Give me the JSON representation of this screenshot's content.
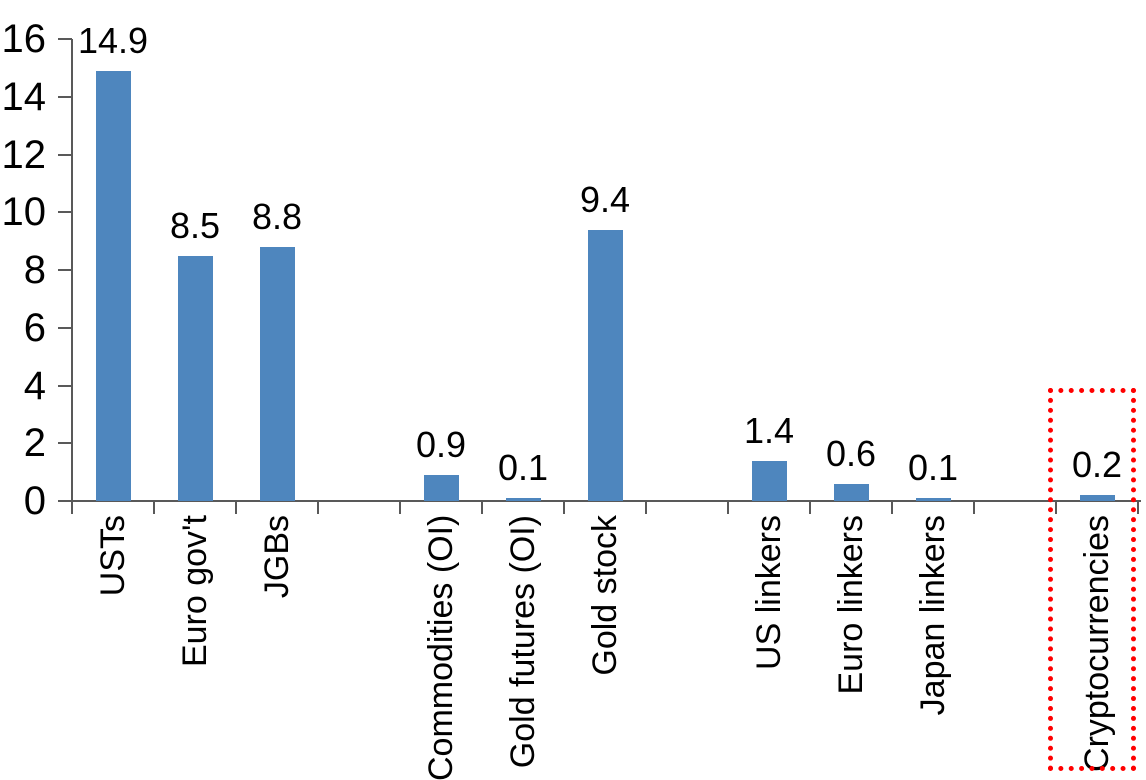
{
  "chart_data": {
    "type": "bar",
    "title": "",
    "xlabel": "",
    "ylabel": "",
    "categories": [
      "USTs",
      "Euro gov't",
      "JGBs",
      "",
      "Commodities (OI)",
      "Gold futures (OI)",
      "Gold stock",
      "",
      "US linkers",
      "Euro linkers",
      "Japan linkers",
      "",
      "Cryptocurrencies"
    ],
    "values": [
      14.9,
      8.5,
      8.8,
      null,
      0.9,
      0.1,
      9.4,
      null,
      1.4,
      0.6,
      0.1,
      null,
      0.2
    ],
    "data_labels": [
      "14.9",
      "8.5",
      "8.8",
      null,
      "0.9",
      "0.1",
      "9.4",
      null,
      "1.4",
      "0.6",
      "0.1",
      null,
      "0.2"
    ],
    "ylim": [
      0,
      16
    ],
    "y_ticks": [
      0,
      2,
      4,
      6,
      8,
      10,
      12,
      14,
      16
    ],
    "grid": false,
    "legend": "none",
    "bar_color": "#4e86be",
    "axis_color": "#595959",
    "text_color": "#000000",
    "highlight_box": {
      "target": "Cryptocurrencies",
      "target_index": 12,
      "color": "#ff0000",
      "style": "dotted"
    }
  }
}
